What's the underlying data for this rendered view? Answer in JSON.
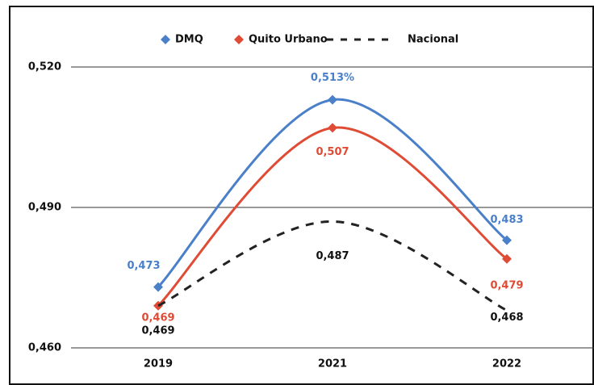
{
  "chart_data": {
    "type": "line",
    "categories": [
      "2019",
      "2021",
      "2022"
    ],
    "series": [
      {
        "name": "DMQ",
        "color": "#4a7fc9",
        "marker": "diamond",
        "line_style": "solid",
        "values": [
          0.473,
          0.513,
          0.483
        ],
        "value_labels": [
          "0,473",
          "0,513%",
          "0,483"
        ]
      },
      {
        "name": "Quito Urbano",
        "color": "#e04b35",
        "marker": "diamond",
        "line_style": "solid",
        "values": [
          0.469,
          0.507,
          0.479
        ],
        "value_labels": [
          "0,469",
          "0,507",
          "0,479"
        ]
      },
      {
        "name": "Nacional",
        "color": "#222222",
        "marker": "none",
        "line_style": "dashed",
        "values": [
          0.469,
          0.487,
          0.468
        ],
        "value_labels": [
          "0,469",
          "0,487",
          "0,468"
        ]
      }
    ],
    "ylim": [
      0.46,
      0.52
    ],
    "yticks": [
      {
        "value": 0.46,
        "label": "0,460"
      },
      {
        "value": 0.49,
        "label": "0,490"
      },
      {
        "value": 0.52,
        "label": "0,520"
      }
    ],
    "grid": true,
    "legend": "top",
    "smooth": true
  }
}
